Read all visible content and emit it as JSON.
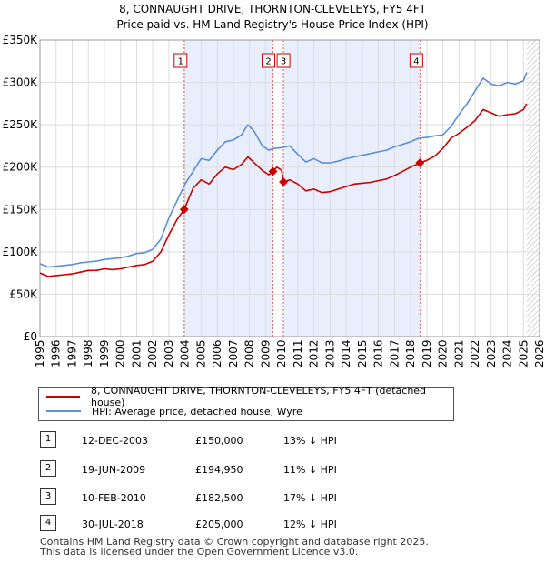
{
  "title_line1": "8, CONNAUGHT DRIVE, THORNTON-CLEVELEYS, FY5 4FT",
  "title_line2": "Price paid vs. HM Land Registry's House Price Index (HPI)",
  "chart_data": {
    "type": "line",
    "xlim": [
      1995,
      2026
    ],
    "ylim": [
      0,
      350000
    ],
    "y_ticks": [
      0,
      50000,
      100000,
      150000,
      200000,
      250000,
      300000,
      350000
    ],
    "y_tick_labels": [
      "£0",
      "£50K",
      "£100K",
      "£150K",
      "£200K",
      "£250K",
      "£300K",
      "£350K"
    ],
    "x_ticks": [
      1995,
      1996,
      1997,
      1998,
      1999,
      2000,
      2001,
      2002,
      2003,
      2004,
      2005,
      2006,
      2007,
      2008,
      2009,
      2010,
      2011,
      2012,
      2013,
      2014,
      2015,
      2016,
      2017,
      2018,
      2019,
      2020,
      2021,
      2022,
      2023,
      2024,
      2025,
      2026
    ],
    "grid": true,
    "shaded_ranges": [
      [
        2003.95,
        2009.46
      ],
      [
        2010.11,
        2018.58
      ]
    ],
    "hatched_from": 2025.2,
    "series": [
      {
        "name": "8, CONNAUGHT DRIVE, THORNTON-CLEVELEYS, FY5 4FT (detached house)",
        "color": "#cc0000",
        "x": [
          1995.0,
          1995.5,
          1996.0,
          1996.5,
          1997.0,
          1997.5,
          1998.0,
          1998.5,
          1999.0,
          1999.5,
          2000.0,
          2000.5,
          2001.0,
          2001.5,
          2002.0,
          2002.5,
          2003.0,
          2003.5,
          2003.95,
          2004.5,
          2005.0,
          2005.5,
          2006.0,
          2006.5,
          2007.0,
          2007.5,
          2007.9,
          2008.3,
          2008.8,
          2009.2,
          2009.46,
          2009.7,
          2010.0,
          2010.11,
          2010.5,
          2011.0,
          2011.5,
          2012.0,
          2012.5,
          2013.0,
          2013.5,
          2014.0,
          2014.5,
          2015.0,
          2015.5,
          2016.0,
          2016.5,
          2017.0,
          2017.5,
          2018.0,
          2018.58,
          2019.0,
          2019.5,
          2020.0,
          2020.5,
          2021.0,
          2021.5,
          2022.0,
          2022.5,
          2023.0,
          2023.5,
          2024.0,
          2024.5,
          2025.0,
          2025.2
        ],
        "values": [
          75000,
          71000,
          72000,
          73000,
          74000,
          76000,
          78000,
          78000,
          80000,
          79000,
          80000,
          82000,
          84000,
          85000,
          89000,
          100000,
          120000,
          138000,
          150000,
          175000,
          185000,
          180000,
          192000,
          200000,
          197000,
          203000,
          212000,
          205000,
          196000,
          191000,
          194950,
          200000,
          196000,
          182500,
          185000,
          180000,
          172000,
          174000,
          170000,
          171000,
          174000,
          177000,
          180000,
          181000,
          182000,
          184000,
          186000,
          190000,
          195000,
          200000,
          205000,
          208000,
          213000,
          222000,
          234000,
          240000,
          247000,
          255000,
          268000,
          264000,
          260000,
          262000,
          263000,
          268000,
          275000
        ]
      },
      {
        "name": "HPI: Average price, detached house, Wyre",
        "color": "#5b8fd4",
        "x": [
          1995.0,
          1995.5,
          1996.0,
          1996.5,
          1997.0,
          1997.5,
          1998.0,
          1998.5,
          1999.0,
          1999.5,
          2000.0,
          2000.5,
          2001.0,
          2001.5,
          2002.0,
          2002.5,
          2003.0,
          2003.5,
          2004.0,
          2004.5,
          2005.0,
          2005.5,
          2006.0,
          2006.5,
          2007.0,
          2007.5,
          2007.9,
          2008.3,
          2008.8,
          2009.2,
          2009.5,
          2010.0,
          2010.5,
          2011.0,
          2011.5,
          2012.0,
          2012.5,
          2013.0,
          2013.5,
          2014.0,
          2014.5,
          2015.0,
          2015.5,
          2016.0,
          2016.5,
          2017.0,
          2017.5,
          2018.0,
          2018.5,
          2019.0,
          2019.5,
          2020.0,
          2020.5,
          2021.0,
          2021.5,
          2022.0,
          2022.5,
          2023.0,
          2023.5,
          2024.0,
          2024.5,
          2025.0,
          2025.2
        ],
        "values": [
          86000,
          82000,
          83000,
          84000,
          85000,
          87000,
          88000,
          89000,
          91000,
          92000,
          93000,
          95000,
          98000,
          99000,
          103000,
          115000,
          140000,
          160000,
          180000,
          195000,
          210000,
          208000,
          220000,
          230000,
          232000,
          238000,
          250000,
          242000,
          225000,
          220000,
          222000,
          223000,
          225000,
          215000,
          206000,
          210000,
          205000,
          205000,
          207000,
          210000,
          212000,
          214000,
          216000,
          218000,
          220000,
          224000,
          227000,
          230000,
          234000,
          235000,
          237000,
          238000,
          248000,
          262000,
          275000,
          290000,
          305000,
          298000,
          296000,
          300000,
          298000,
          302000,
          312000
        ]
      }
    ],
    "markers": [
      {
        "label": "1",
        "x": 2003.95,
        "y": 150000
      },
      {
        "label": "2",
        "x": 2009.46,
        "y": 194950
      },
      {
        "label": "3",
        "x": 2010.11,
        "y": 182500
      },
      {
        "label": "4",
        "x": 2018.58,
        "y": 205000
      }
    ]
  },
  "legend": {
    "property_label": "8, CONNAUGHT DRIVE, THORNTON-CLEVELEYS, FY5 4FT (detached house)",
    "hpi_label": "HPI: Average price, detached house, Wyre"
  },
  "transactions": [
    {
      "num": "1",
      "date": "12-DEC-2003",
      "price": "£150,000",
      "hpi": "13% ↓ HPI"
    },
    {
      "num": "2",
      "date": "19-JUN-2009",
      "price": "£194,950",
      "hpi": "11% ↓ HPI"
    },
    {
      "num": "3",
      "date": "10-FEB-2010",
      "price": "£182,500",
      "hpi": "17% ↓ HPI"
    },
    {
      "num": "4",
      "date": "30-JUL-2018",
      "price": "£205,000",
      "hpi": "12% ↓ HPI"
    }
  ],
  "footer_line1": "Contains HM Land Registry data © Crown copyright and database right 2025.",
  "footer_line2": "This data is licensed under the Open Government Licence v3.0."
}
